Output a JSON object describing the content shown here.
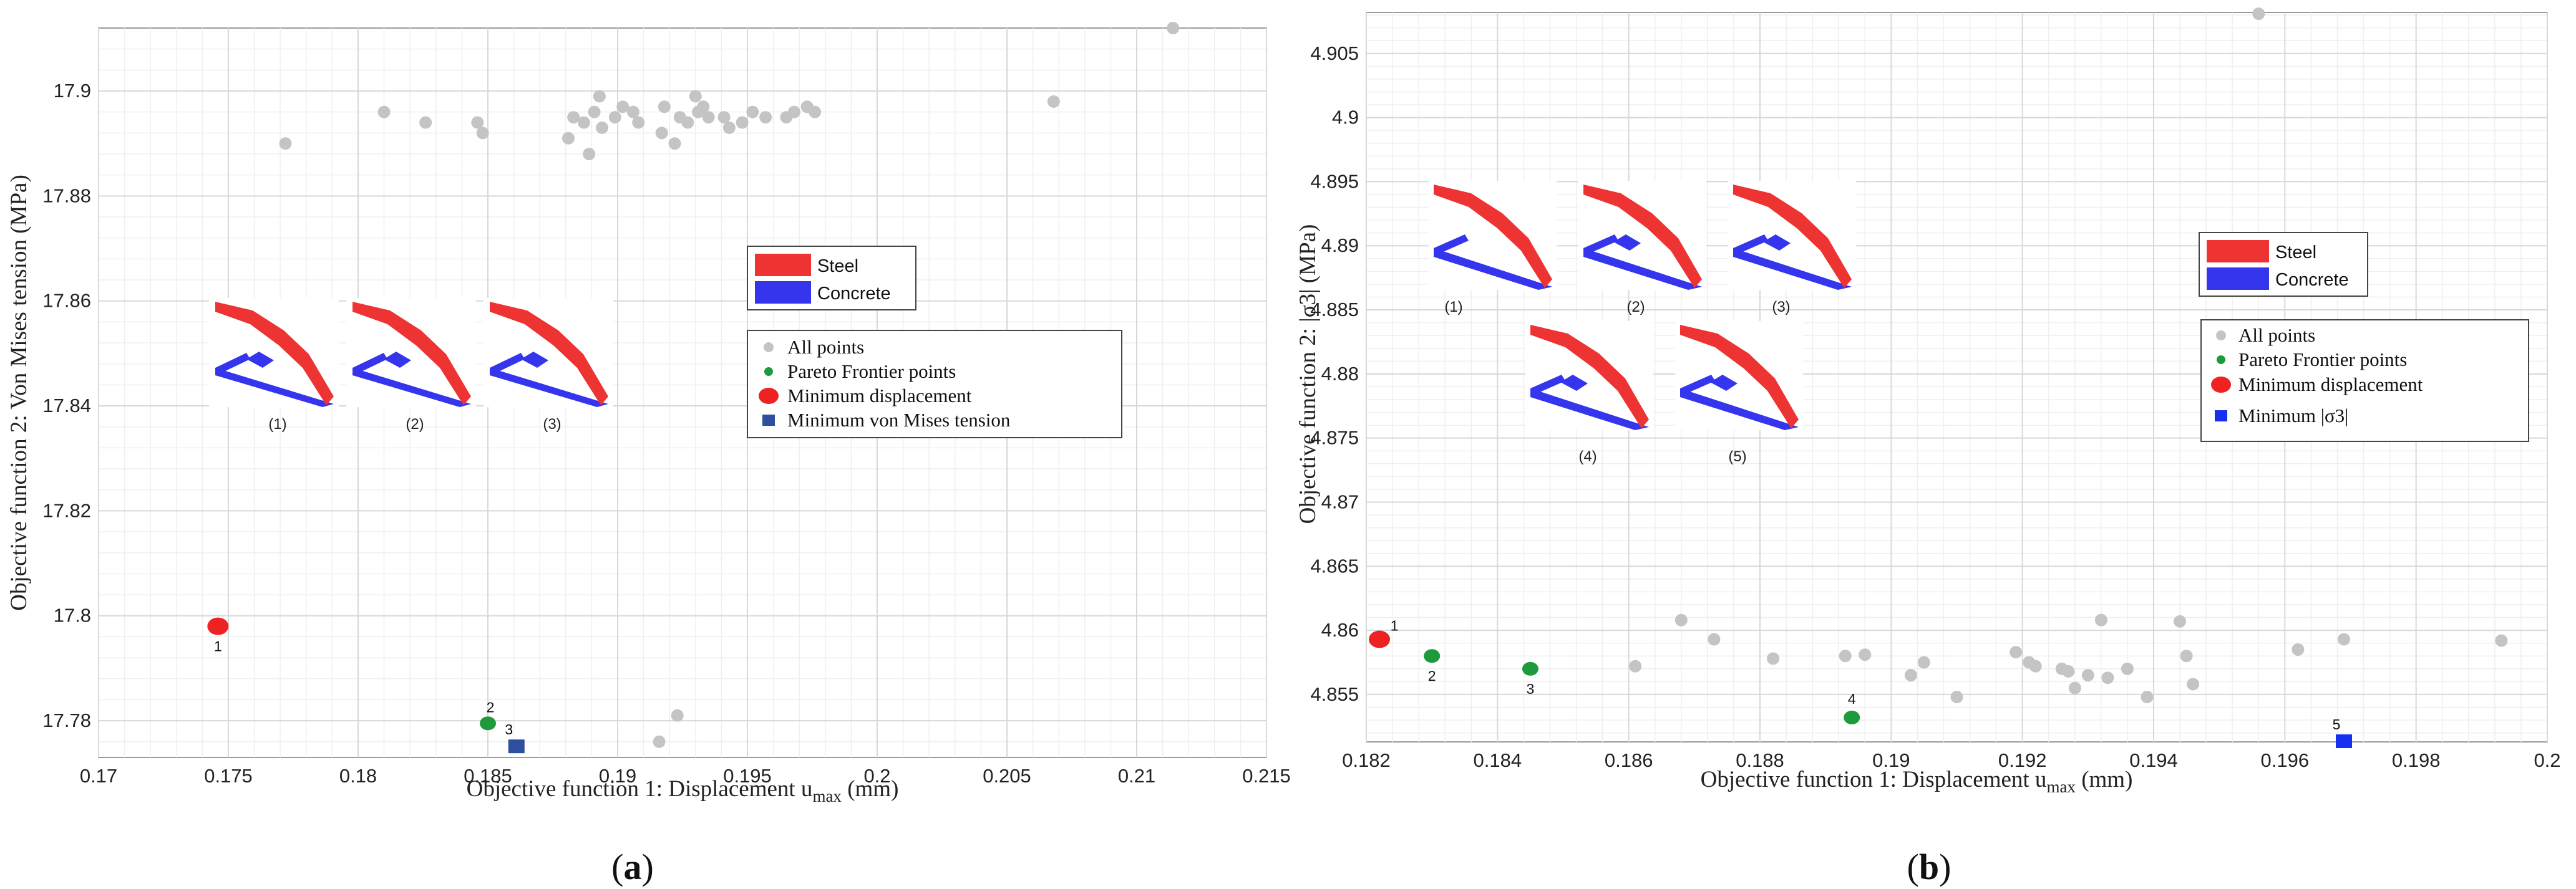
{
  "chart_data": [
    {
      "id": "a",
      "type": "scatter",
      "panel_label": "(a)",
      "xlabel_main": "Objective function 1: Displacement u",
      "xlabel_sub": "max",
      "xlabel_unit": " (mm)",
      "ylabel": "Objective function 2: Von Mises tension (MPa)",
      "xlim": [
        0.17,
        0.215
      ],
      "ylim": [
        17.773,
        17.912
      ],
      "xticks": [
        0.17,
        0.175,
        0.18,
        0.185,
        0.19,
        0.195,
        0.2,
        0.205,
        0.21,
        0.215
      ],
      "xtick_labels": [
        "0.17",
        "0.175",
        "0.18",
        "0.185",
        "0.19",
        "0.195",
        "0.2",
        "0.205",
        "0.21",
        "0.215"
      ],
      "yticks": [
        17.78,
        17.8,
        17.82,
        17.84,
        17.86,
        17.88,
        17.9
      ],
      "ytick_labels": [
        "17.78",
        "17.8",
        "17.82",
        "17.84",
        "17.86",
        "17.88",
        "17.9"
      ],
      "grid": true,
      "legend_materials": [
        "Steel",
        "Concrete"
      ],
      "legend_entries": [
        "All points",
        "Pareto Frontier points",
        "Minimum displacement",
        "Minimum von Mises tension"
      ],
      "thumbnail_labels": [
        "(1)",
        "(2)",
        "(3)"
      ],
      "colors": {
        "all": "#c4c4c4",
        "pareto": "#1e9a3c",
        "min_disp": "#ee2222",
        "min_obj": "#2e4fa0",
        "steel": "#ee3333",
        "concrete": "#3535ee"
      },
      "series": [
        {
          "name": "All points",
          "marker": "all",
          "x": [
            0.1772,
            0.181,
            0.1826,
            0.1846,
            0.1848,
            0.1881,
            0.1883,
            0.1887,
            0.1889,
            0.1891,
            0.1893,
            0.1894,
            0.1899,
            0.1902,
            0.1906,
            0.1908,
            0.1917,
            0.1918,
            0.1922,
            0.1924,
            0.1927,
            0.193,
            0.1931,
            0.1933,
            0.1935,
            0.1941,
            0.1943,
            0.1948,
            0.1952,
            0.1957,
            0.1965,
            0.1968,
            0.1973,
            0.1976,
            0.2068,
            0.2114,
            0.1916,
            0.1923
          ],
          "y": [
            17.89,
            17.896,
            17.894,
            17.894,
            17.892,
            17.891,
            17.895,
            17.894,
            17.888,
            17.896,
            17.899,
            17.893,
            17.895,
            17.897,
            17.896,
            17.894,
            17.892,
            17.897,
            17.89,
            17.895,
            17.894,
            17.899,
            17.896,
            17.897,
            17.895,
            17.895,
            17.893,
            17.894,
            17.896,
            17.895,
            17.895,
            17.896,
            17.897,
            17.896,
            17.898,
            17.912,
            17.776,
            17.781
          ]
        },
        {
          "name": "Pareto Frontier points",
          "marker": "pareto",
          "labels": [
            "2"
          ],
          "x": [
            0.185
          ],
          "y": [
            17.7795
          ]
        },
        {
          "name": "Minimum displacement",
          "marker": "min_disp",
          "labels": [
            "1"
          ],
          "x": [
            0.1746
          ],
          "y": [
            17.798
          ]
        },
        {
          "name": "Minimum von Mises tension",
          "marker": "min_obj",
          "labels": [
            "3"
          ],
          "x": [
            0.1861
          ],
          "y": [
            17.775
          ]
        }
      ]
    },
    {
      "id": "b",
      "type": "scatter",
      "panel_label": "(b)",
      "xlabel_main": "Objective function 1: Displacement u",
      "xlabel_sub": "max",
      "xlabel_unit": " (mm)",
      "ylabel": "Objective function 2: |σ3| (MPa)",
      "xlim": [
        0.182,
        0.2
      ],
      "ylim": [
        4.8513,
        4.9082
      ],
      "xticks": [
        0.182,
        0.184,
        0.186,
        0.188,
        0.19,
        0.192,
        0.194,
        0.196,
        0.198,
        0.2
      ],
      "xtick_labels": [
        "0.182",
        "0.184",
        "0.186",
        "0.188",
        "0.19",
        "0.192",
        "0.194",
        "0.196",
        "0.198",
        "0.2"
      ],
      "yticks": [
        4.855,
        4.86,
        4.865,
        4.87,
        4.875,
        4.88,
        4.885,
        4.89,
        4.895,
        4.9,
        4.905
      ],
      "ytick_labels": [
        "4.855",
        "4.86",
        "4.865",
        "4.87",
        "4.875",
        "4.88",
        "4.885",
        "4.89",
        "4.895",
        "4.9",
        "4.905"
      ],
      "grid": true,
      "legend_materials": [
        "Steel",
        "Concrete"
      ],
      "legend_entries": [
        "All points",
        "Pareto Frontier points",
        "Minimum displacement",
        "Minimum |σ3|"
      ],
      "thumbnail_labels": [
        "(1)",
        "(2)",
        "(3)",
        "(4)",
        "(5)"
      ],
      "colors": {
        "all": "#c4c4c4",
        "pareto": "#1e9a3c",
        "min_disp": "#ee2222",
        "min_obj": "#1530ee",
        "steel": "#ee3333",
        "concrete": "#3535ee"
      },
      "series": [
        {
          "name": "All points",
          "marker": "all",
          "x": [
            0.1861,
            0.1868,
            0.1873,
            0.1882,
            0.1893,
            0.1896,
            0.1903,
            0.1905,
            0.191,
            0.1919,
            0.1921,
            0.1922,
            0.1926,
            0.1927,
            0.1928,
            0.193,
            0.1932,
            0.1933,
            0.1936,
            0.1939,
            0.1944,
            0.1945,
            0.1946,
            0.1956,
            0.1962,
            0.1969,
            0.1993
          ],
          "y": [
            4.8572,
            4.8608,
            4.8593,
            4.8578,
            4.858,
            4.8581,
            4.8565,
            4.8575,
            4.8548,
            4.8583,
            4.8575,
            4.8572,
            4.857,
            4.8568,
            4.8555,
            4.8565,
            4.8608,
            4.8563,
            4.857,
            4.8548,
            4.8607,
            4.858,
            4.8558,
            4.9081,
            4.8585,
            4.8593,
            4.8592
          ]
        },
        {
          "name": "Pareto Frontier points",
          "marker": "pareto",
          "labels": [
            "2",
            "3",
            "4"
          ],
          "x": [
            0.183,
            0.1845,
            0.1894
          ],
          "y": [
            4.858,
            4.857,
            4.8532
          ]
        },
        {
          "name": "Minimum displacement",
          "marker": "min_disp",
          "labels": [
            "1"
          ],
          "x": [
            0.1822
          ],
          "y": [
            4.8593
          ]
        },
        {
          "name": "Minimum |σ3|",
          "marker": "min_obj",
          "labels": [
            "5"
          ],
          "x": [
            0.1969
          ],
          "y": [
            4.8513
          ]
        }
      ]
    }
  ]
}
